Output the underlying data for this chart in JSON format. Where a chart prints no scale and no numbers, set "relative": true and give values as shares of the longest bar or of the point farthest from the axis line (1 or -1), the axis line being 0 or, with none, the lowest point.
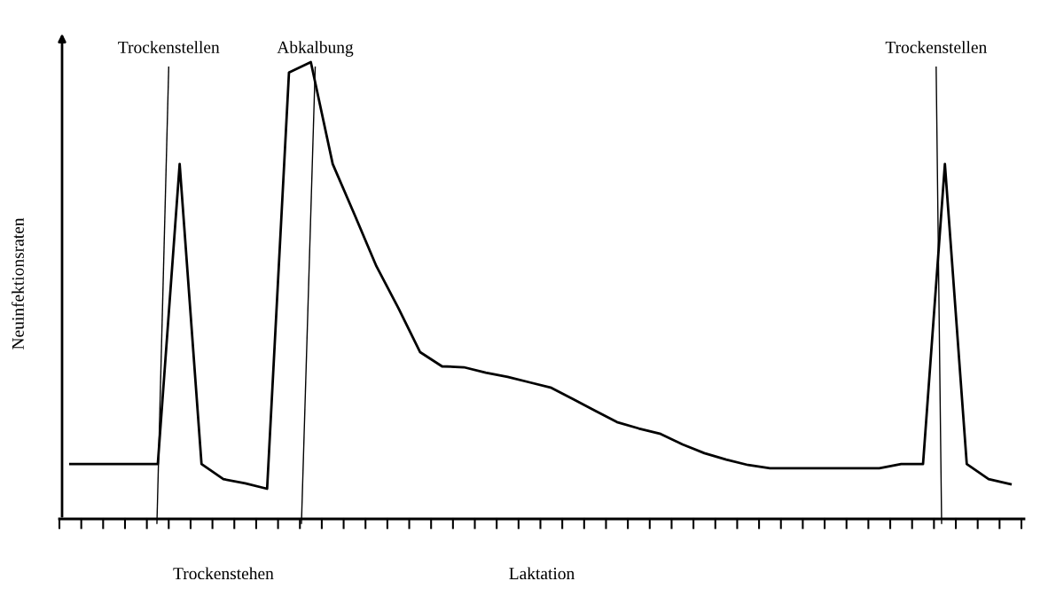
{
  "chart_data": {
    "type": "line",
    "relative": true,
    "xlabel": "Laktation",
    "ylabel": "Neuinfektionsraten",
    "categories": [
      null,
      null,
      null,
      null,
      null,
      null,
      null,
      null,
      null,
      null,
      null,
      null,
      null,
      null,
      null,
      null,
      null,
      null,
      null,
      null,
      null,
      null,
      null,
      null,
      null,
      null,
      null,
      null,
      null,
      null,
      null,
      null,
      null,
      null,
      null,
      null,
      null,
      null,
      null,
      null,
      null,
      null,
      null,
      null
    ],
    "series": [
      {
        "color": "#000000",
        "values": [
          0.12,
          0.12,
          0.12,
          0.12,
          0.12,
          0.777,
          0.12,
          0.087,
          0.078,
          0.066,
          0.977,
          1,
          0.777,
          0.666,
          0.553,
          0.462,
          0.365,
          0.334,
          0.332,
          0.32,
          0.311,
          0.299,
          0.287,
          0.262,
          0.237,
          0.212,
          0.198,
          0.186,
          0.163,
          0.144,
          0.13,
          0.118,
          0.111,
          0.111,
          0.111,
          0.111,
          0.111,
          0.111,
          0.12,
          0.12,
          0.777,
          0.12,
          0.087,
          0.076
        ]
      }
    ],
    "annotations": [
      "Trockenstellen",
      "Abkalbung",
      "Trockenstellen",
      "Trockenstehen"
    ],
    "grid": false,
    "legend": false,
    "marker": "none",
    "line_style": "solid"
  }
}
